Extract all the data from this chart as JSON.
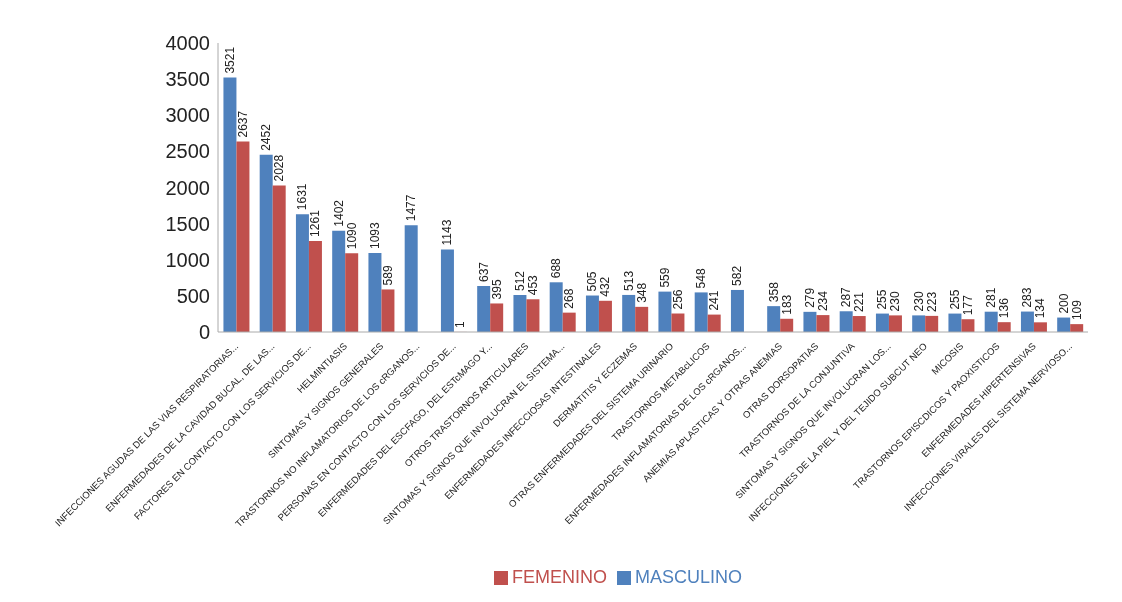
{
  "chart_data": {
    "type": "bar",
    "categories": [
      "INFECCIONES AGUDAS DE LAS VIAS RESPIRATORIAS...",
      "ENFERMEDADES DE LA CAVIDAD BUCAL, DE LAS...",
      "FACTORES EN CONTACTO CON LOS SERVICIOS DE...",
      "HELMINTIASIS",
      "SINTOMAS Y SIGNOS GENERALES",
      "TRASTORNOS NO INFLAMATORIOS DE LOS cRGANOS...",
      "PERSONAS EN CONTACTO CON LOS SERVICIOS DE...",
      "ENFERMEDADES DEL ESCFAGO, DEL ESTcMAGO Y...",
      "OTROS TRASTORNOS ARTICULARES",
      "SINTOMAS Y SIGNOS QUE INVOLUCRAN EL SISTEMA...",
      "ENFERMEDADES INFECCIOSAS INTESTINALES",
      "DERMATITIS Y ECZEMAS",
      "OTRAS ENFERMEDADES DEL SISTEMA URINARIO",
      "TRASTORNOS METABcLICOS",
      "ENFERMEDADES INFLAMATORIAS DE LOS cRGANOS...",
      "ANEMIAS APLASTICAS Y OTRAS ANEMIAS",
      "OTRAS DORSOPATIAS",
      "TRASTORNOS DE LA CONJUNTIVA",
      "SINTOMAS Y SIGNOS QUE INVOLUCRAN LOS...",
      "INFECCIONES DE LA PIEL Y DEL TEJIDO SUBCUT NEO",
      "MICOSIS",
      "TRASTORNOS EPISCDICOS Y PAOXISTICOS",
      "ENFERMEDADES HIPERTENSIVAS",
      "INFECCIONES VIRALES DEL SISTEMA NERVIOSO..."
    ],
    "series": [
      {
        "name": "MASCULINO",
        "color": "#4f81bd",
        "values": [
          3521,
          2452,
          1631,
          1402,
          1093,
          1477,
          1143,
          637,
          512,
          688,
          505,
          513,
          559,
          548,
          582,
          358,
          279,
          287,
          255,
          230,
          255,
          281,
          283,
          200
        ]
      },
      {
        "name": "FEMENINO",
        "color": "#c0504d",
        "values": [
          2637,
          2028,
          1261,
          1090,
          589,
          null,
          1,
          395,
          453,
          268,
          432,
          348,
          256,
          241,
          null,
          183,
          234,
          221,
          230,
          223,
          177,
          136,
          134,
          109
        ]
      }
    ],
    "ylim": [
      0,
      4000
    ],
    "yticks": [
      0,
      500,
      1000,
      1500,
      2000,
      2500,
      3000,
      3500,
      4000
    ],
    "grid": false,
    "legend": "bottom",
    "data_labels": true
  }
}
